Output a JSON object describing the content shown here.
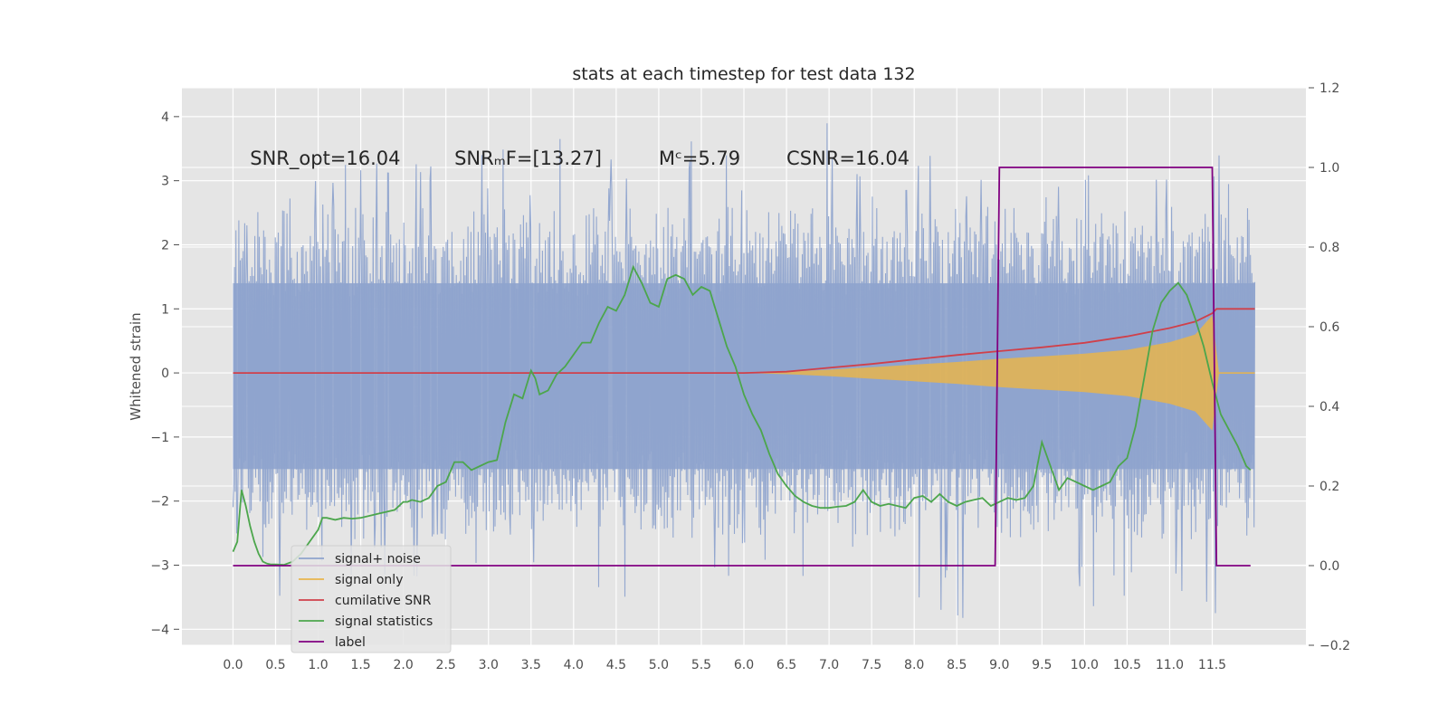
{
  "chart_data": {
    "type": "line",
    "title": "stats at each timestep for test data 132",
    "ylabel": "Whitened strain",
    "y2label": "",
    "xlim": [
      -0.6,
      12.6
    ],
    "ylim": [
      -4.25,
      4.45
    ],
    "y2lim": [
      -0.2,
      1.2
    ],
    "x_ticks": [
      0.0,
      0.5,
      1.0,
      1.5,
      2.0,
      2.5,
      3.0,
      3.5,
      4.0,
      4.5,
      5.0,
      5.5,
      6.0,
      6.5,
      7.0,
      7.5,
      8.0,
      8.5,
      9.0,
      9.5,
      10.0,
      10.5,
      11.0,
      11.5
    ],
    "x_tick_labels": [
      "0.0",
      "0.5",
      "1.0",
      "1.5",
      "2.0",
      "2.5",
      "3.0",
      "3.5",
      "4.0",
      "4.5",
      "5.0",
      "5.5",
      "6.0",
      "6.5",
      "7.0",
      "7.5",
      "8.0",
      "8.5",
      "9.0",
      "9.5",
      "10.0",
      "10.5",
      "11.0",
      "11.5"
    ],
    "y_ticks": [
      4,
      3,
      2,
      1,
      0,
      -1,
      -2,
      -3,
      -4
    ],
    "y_tick_labels": [
      "4",
      "3",
      "2",
      "1",
      "0",
      "−1",
      "−2",
      "−3",
      "−4"
    ],
    "y2_ticks": [
      1.2,
      1.0,
      0.8,
      0.6,
      0.4,
      0.2,
      0.0,
      -0.2
    ],
    "y2_tick_labels": [
      "1.2",
      "1.0",
      "0.8",
      "0.6",
      "0.4",
      "0.2",
      "0.0",
      "−0.2"
    ],
    "grid": true,
    "legend_position": "lower-left",
    "annotations": [
      {
        "id": "snr-opt",
        "text": "SNR_opt=16.04",
        "x": 0.2,
        "y": 3.25
      },
      {
        "id": "snr-mf",
        "text": "SNRₘF=[13.27]",
        "x": 2.6,
        "y": 3.25
      },
      {
        "id": "mc",
        "text": "Mᶜ=5.79",
        "x": 5.0,
        "y": 3.25
      },
      {
        "id": "csnr",
        "text": "CSNR=16.04",
        "x": 6.5,
        "y": 3.25
      }
    ],
    "series": [
      {
        "name": "signal+ noise",
        "axis": "left",
        "color": "#8ea3cd",
        "style": "noise-band",
        "x_range": [
          0.0,
          12.0
        ],
        "upper_envelope": [
          2.5,
          3.2,
          3.1,
          3.4,
          3.3,
          3.5,
          3.6,
          3.4,
          3.9,
          3.3,
          3.6,
          3.8,
          3.5,
          3.6,
          4.1,
          3.4,
          3.5,
          3.3,
          3.2,
          3.1,
          3.7,
          3.3,
          3.5,
          3.8,
          2.6
        ],
        "lower_envelope": [
          -2.4,
          -3.8,
          -3.3,
          -3.2,
          -3.4,
          -3.0,
          -3.0,
          -3.1,
          -3.8,
          -3.6,
          -3.7,
          -3.4,
          -3.2,
          -3.3,
          -3.0,
          -3.2,
          -3.5,
          -3.9,
          -3.6,
          -3.5,
          -3.8,
          -3.5,
          -3.7,
          -3.9,
          -3.3
        ]
      },
      {
        "name": "signal only",
        "axis": "left",
        "color": "#e8b54c",
        "style": "chirp-band",
        "x": [
          6.0,
          6.5,
          7.0,
          7.5,
          8.0,
          8.5,
          9.0,
          9.5,
          10.0,
          10.5,
          11.0,
          11.3,
          11.5,
          11.58
        ],
        "amplitude": [
          0.0,
          0.02,
          0.05,
          0.09,
          0.13,
          0.17,
          0.22,
          0.26,
          0.3,
          0.36,
          0.48,
          0.6,
          0.9,
          0.0
        ]
      },
      {
        "name": "cumilative SNR",
        "axis": "left",
        "color": "#d0404a",
        "x": [
          0.0,
          6.0,
          6.5,
          7.0,
          7.5,
          8.0,
          8.5,
          9.0,
          9.5,
          10.0,
          10.5,
          11.0,
          11.3,
          11.5,
          11.55,
          12.0
        ],
        "y": [
          0.0,
          0.0,
          0.02,
          0.08,
          0.14,
          0.21,
          0.28,
          0.34,
          0.4,
          0.47,
          0.57,
          0.7,
          0.8,
          0.93,
          1.0,
          1.0
        ]
      },
      {
        "name": "signal statistics",
        "axis": "right",
        "color": "#4ca64c",
        "x": [
          0.0,
          0.05,
          0.1,
          0.15,
          0.2,
          0.25,
          0.3,
          0.35,
          0.4,
          0.45,
          0.5,
          0.6,
          0.7,
          0.8,
          0.9,
          1.0,
          1.05,
          1.1,
          1.2,
          1.3,
          1.4,
          1.5,
          1.6,
          1.7,
          1.8,
          1.9,
          2.0,
          2.05,
          2.1,
          2.2,
          2.3,
          2.4,
          2.5,
          2.6,
          2.7,
          2.8,
          2.9,
          3.0,
          3.1,
          3.2,
          3.3,
          3.4,
          3.5,
          3.55,
          3.6,
          3.7,
          3.8,
          3.9,
          4.0,
          4.1,
          4.2,
          4.3,
          4.4,
          4.5,
          4.6,
          4.7,
          4.8,
          4.9,
          5.0,
          5.1,
          5.2,
          5.3,
          5.4,
          5.5,
          5.6,
          5.7,
          5.8,
          5.9,
          6.0,
          6.1,
          6.2,
          6.3,
          6.4,
          6.5,
          6.6,
          6.7,
          6.8,
          6.9,
          7.0,
          7.1,
          7.2,
          7.3,
          7.4,
          7.5,
          7.6,
          7.7,
          7.8,
          7.9,
          8.0,
          8.1,
          8.2,
          8.3,
          8.4,
          8.5,
          8.6,
          8.7,
          8.8,
          8.9,
          9.0,
          9.1,
          9.2,
          9.3,
          9.4,
          9.5,
          9.6,
          9.7,
          9.8,
          9.9,
          10.0,
          10.1,
          10.2,
          10.3,
          10.4,
          10.5,
          10.6,
          10.7,
          10.8,
          10.9,
          11.0,
          11.1,
          11.2,
          11.3,
          11.4,
          11.5,
          11.6,
          11.7,
          11.8,
          11.9,
          11.95
        ],
        "y": [
          0.035,
          0.06,
          0.19,
          0.15,
          0.1,
          0.06,
          0.03,
          0.01,
          0.005,
          0.003,
          0.003,
          0.002,
          0.01,
          0.03,
          0.06,
          0.09,
          0.12,
          0.12,
          0.115,
          0.12,
          0.118,
          0.12,
          0.125,
          0.13,
          0.135,
          0.14,
          0.16,
          0.16,
          0.165,
          0.16,
          0.17,
          0.2,
          0.21,
          0.26,
          0.26,
          0.24,
          0.25,
          0.26,
          0.265,
          0.36,
          0.43,
          0.42,
          0.49,
          0.47,
          0.43,
          0.44,
          0.48,
          0.5,
          0.53,
          0.56,
          0.56,
          0.61,
          0.65,
          0.64,
          0.68,
          0.75,
          0.71,
          0.66,
          0.65,
          0.72,
          0.73,
          0.72,
          0.68,
          0.7,
          0.69,
          0.62,
          0.55,
          0.5,
          0.43,
          0.38,
          0.34,
          0.28,
          0.23,
          0.2,
          0.175,
          0.16,
          0.15,
          0.145,
          0.145,
          0.148,
          0.15,
          0.16,
          0.19,
          0.16,
          0.15,
          0.155,
          0.15,
          0.145,
          0.17,
          0.175,
          0.16,
          0.18,
          0.16,
          0.15,
          0.16,
          0.165,
          0.17,
          0.15,
          0.16,
          0.17,
          0.165,
          0.17,
          0.2,
          0.31,
          0.25,
          0.19,
          0.22,
          0.21,
          0.2,
          0.19,
          0.2,
          0.21,
          0.25,
          0.27,
          0.35,
          0.47,
          0.59,
          0.66,
          0.69,
          0.71,
          0.68,
          0.62,
          0.55,
          0.46,
          0.38,
          0.34,
          0.3,
          0.25,
          0.24
        ]
      },
      {
        "name": "label",
        "axis": "right",
        "color": "#800080",
        "x": [
          0.0,
          8.95,
          9.0,
          11.5,
          11.55,
          11.95
        ],
        "y": [
          0.0,
          0.0,
          1.0,
          1.0,
          0.0,
          0.0
        ]
      }
    ],
    "legend": [
      {
        "label": "signal+ noise",
        "color": "#8ea3cd"
      },
      {
        "label": "signal only",
        "color": "#e8b54c"
      },
      {
        "label": "cumilative SNR",
        "color": "#d0404a"
      },
      {
        "label": "signal statistics",
        "color": "#4ca64c"
      },
      {
        "label": "label",
        "color": "#800080"
      }
    ],
    "colors": {
      "plot_background": "#e5e5e5",
      "grid": "#ffffff"
    }
  }
}
